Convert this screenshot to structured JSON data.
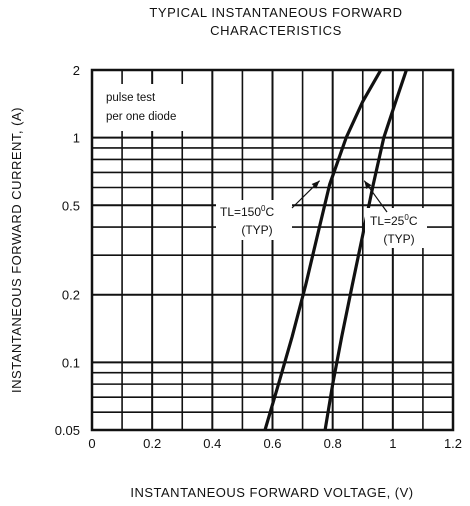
{
  "chart_data": {
    "type": "line",
    "title_line1": "TYPICAL INSTANTANEOUS FORWARD",
    "title_line2": "CHARACTERISTICS",
    "xlabel": "INSTANTANEOUS FORWARD VOLTAGE, (V)",
    "ylabel": "INSTANTANEOUS FORWARD CURRENT, (A)",
    "x_scale": "linear",
    "y_scale": "log",
    "xlim": [
      0,
      1.2
    ],
    "ylim": [
      0.05,
      2
    ],
    "grid": true,
    "x_ticks": [
      {
        "value": 0,
        "label": "0"
      },
      {
        "value": 0.2,
        "label": "0.2"
      },
      {
        "value": 0.4,
        "label": "0.4"
      },
      {
        "value": 0.6,
        "label": "0.6"
      },
      {
        "value": 0.8,
        "label": "0.8"
      },
      {
        "value": 1.0,
        "label": "1"
      },
      {
        "value": 1.2,
        "label": "1.2"
      }
    ],
    "y_ticks": [
      {
        "value": 0.05,
        "label": "0.05"
      },
      {
        "value": 0.1,
        "label": "0.1"
      },
      {
        "value": 0.2,
        "label": "0.2"
      },
      {
        "value": 0.5,
        "label": "0.5"
      },
      {
        "value": 1,
        "label": "1"
      },
      {
        "value": 2,
        "label": "2"
      }
    ],
    "minor_x_gridlines": [
      0.1,
      0.3,
      0.5,
      0.7,
      0.9,
      1.1
    ],
    "minor_y_gridlines": [
      0.06,
      0.07,
      0.08,
      0.09,
      0.3,
      0.4,
      0.6,
      0.7,
      0.8,
      0.9
    ],
    "note_line1": "pulse test",
    "note_line2": "per one diode",
    "series": [
      {
        "label_main": "TL=150",
        "label_sup": "0",
        "label_unit": "C",
        "label_typ": "(TYP)",
        "x": [
          0.575,
          0.62,
          0.665,
          0.71,
          0.75,
          0.79,
          0.845,
          0.9,
          0.96
        ],
        "y": [
          0.05,
          0.08,
          0.13,
          0.22,
          0.37,
          0.62,
          1.0,
          1.45,
          2.0
        ]
      },
      {
        "label_main": "TL=25",
        "label_sup": "0",
        "label_unit": "C",
        "label_typ": "(TYP)",
        "x": [
          0.775,
          0.8,
          0.83,
          0.865,
          0.9,
          0.935,
          0.97,
          1.01,
          1.045
        ],
        "y": [
          0.05,
          0.08,
          0.13,
          0.22,
          0.37,
          0.62,
          1.0,
          1.45,
          2.0
        ]
      }
    ],
    "annotation_points": [
      {
        "x": 0.75,
        "y": 0.65
      },
      {
        "x": 0.895,
        "y": 0.65
      }
    ]
  }
}
